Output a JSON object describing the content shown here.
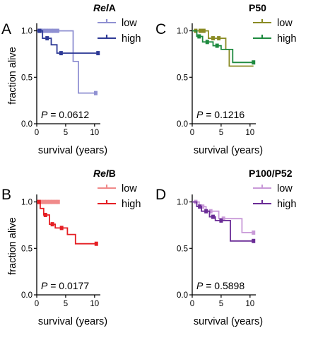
{
  "chart_data": [
    {
      "type": "line",
      "panel": "A",
      "title_italic": "Rel",
      "title_rest": "A",
      "xlabel": "survival (years)",
      "ylabel": "fraction alive",
      "x_ticks": [
        "0",
        "5",
        "10"
      ],
      "y_ticks": [
        "0.0",
        "0.5",
        "1.0"
      ],
      "xlim": [
        0,
        11
      ],
      "ylim": [
        0,
        1.05
      ],
      "grid": false,
      "legend_position": "top-right",
      "p_label": "P",
      "p_value": "= 0.0612",
      "series": [
        {
          "name": "low",
          "color": "#8f90d2",
          "steps": [
            [
              0,
              1.0
            ],
            [
              6.3,
              1.0
            ],
            [
              6.3,
              0.67
            ],
            [
              7.2,
              0.67
            ],
            [
              7.2,
              0.33
            ],
            [
              10.2,
              0.33
            ]
          ],
          "censored": [
            [
              0.4,
              1.0
            ],
            [
              0.8,
              1.0
            ],
            [
              1.2,
              1.0
            ],
            [
              1.6,
              1.0
            ],
            [
              2.0,
              1.0
            ],
            [
              2.5,
              1.0
            ],
            [
              3.0,
              1.0
            ],
            [
              3.6,
              1.0
            ],
            [
              10.2,
              0.33
            ]
          ]
        },
        {
          "name": "high",
          "color": "#2e3a96",
          "steps": [
            [
              0,
              1.0
            ],
            [
              1.0,
              1.0
            ],
            [
              1.0,
              0.92
            ],
            [
              2.5,
              0.92
            ],
            [
              2.5,
              0.85
            ],
            [
              3.5,
              0.85
            ],
            [
              3.5,
              0.76
            ],
            [
              10.6,
              0.76
            ]
          ],
          "censored": [
            [
              0.5,
              1.0
            ],
            [
              1.8,
              0.92
            ],
            [
              4.2,
              0.76
            ],
            [
              10.6,
              0.76
            ]
          ]
        }
      ]
    },
    {
      "type": "line",
      "panel": "B",
      "title_italic": "Rel",
      "title_rest": "B",
      "xlabel": "survival (years)",
      "ylabel": "fraction alive",
      "x_ticks": [
        "0",
        "5",
        "10"
      ],
      "y_ticks": [
        "0.0",
        "0.5",
        "1.0"
      ],
      "xlim": [
        0,
        11
      ],
      "ylim": [
        0,
        1.05
      ],
      "grid": false,
      "legend_position": "top-right",
      "p_label": "P",
      "p_value": "= 0.0177",
      "series": [
        {
          "name": "low",
          "color": "#f08a8a",
          "steps": [
            [
              0,
              1.0
            ],
            [
              3.5,
              1.0
            ]
          ],
          "censored": [
            [
              0.8,
              1.0
            ],
            [
              1.3,
              1.0
            ],
            [
              1.8,
              1.0
            ],
            [
              2.3,
              1.0
            ],
            [
              2.8,
              1.0
            ],
            [
              3.3,
              1.0
            ],
            [
              3.7,
              1.0
            ]
          ]
        },
        {
          "name": "high",
          "color": "#e51f24",
          "steps": [
            [
              0,
              1.0
            ],
            [
              0.6,
              1.0
            ],
            [
              0.6,
              0.93
            ],
            [
              1.2,
              0.93
            ],
            [
              1.2,
              0.86
            ],
            [
              2.2,
              0.86
            ],
            [
              2.2,
              0.76
            ],
            [
              3.2,
              0.76
            ],
            [
              3.2,
              0.72
            ],
            [
              5.3,
              0.72
            ],
            [
              5.3,
              0.65
            ],
            [
              6.7,
              0.65
            ],
            [
              6.7,
              0.55
            ],
            [
              10.3,
              0.55
            ]
          ],
          "censored": [
            [
              0.4,
              1.0
            ],
            [
              1.5,
              0.86
            ],
            [
              2.7,
              0.76
            ],
            [
              4.3,
              0.72
            ],
            [
              10.3,
              0.55
            ]
          ]
        }
      ]
    },
    {
      "type": "line",
      "panel": "C",
      "title_italic": "",
      "title_rest": "P50",
      "xlabel": "survival (years)",
      "ylabel": "",
      "x_ticks": [
        "0",
        "5",
        "10"
      ],
      "y_ticks": [
        "0.0",
        "0.5",
        "1.0"
      ],
      "xlim": [
        0,
        11
      ],
      "ylim": [
        0,
        1.05
      ],
      "grid": false,
      "legend_position": "top-right",
      "p_label": "P",
      "p_value": "= 0.1216",
      "series": [
        {
          "name": "low",
          "color": "#8a8b24",
          "steps": [
            [
              0,
              1.0
            ],
            [
              2.8,
              1.0
            ],
            [
              2.8,
              0.92
            ],
            [
              5.8,
              0.92
            ],
            [
              5.8,
              0.8
            ],
            [
              6.4,
              0.8
            ],
            [
              6.4,
              0.62
            ],
            [
              10.6,
              0.62
            ]
          ],
          "censored": [
            [
              0.6,
              1.0
            ],
            [
              1.4,
              1.0
            ],
            [
              2.0,
              1.0
            ],
            [
              3.6,
              0.92
            ],
            [
              4.6,
              0.92
            ]
          ]
        },
        {
          "name": "high",
          "color": "#1e8a3f",
          "steps": [
            [
              0,
              1.0
            ],
            [
              0.8,
              1.0
            ],
            [
              0.8,
              0.94
            ],
            [
              1.8,
              0.94
            ],
            [
              1.8,
              0.88
            ],
            [
              3.6,
              0.88
            ],
            [
              3.6,
              0.84
            ],
            [
              5.0,
              0.84
            ],
            [
              5.0,
              0.8
            ],
            [
              7.0,
              0.8
            ],
            [
              7.0,
              0.66
            ],
            [
              10.6,
              0.66
            ]
          ],
          "censored": [
            [
              1.2,
              0.94
            ],
            [
              2.6,
              0.88
            ],
            [
              4.3,
              0.84
            ],
            [
              10.6,
              0.66
            ]
          ]
        }
      ]
    },
    {
      "type": "line",
      "panel": "D",
      "title_italic": "",
      "title_rest": "P100/P52",
      "xlabel": "survival (years)",
      "ylabel": "",
      "x_ticks": [
        "0",
        "5",
        "10"
      ],
      "y_ticks": [
        "0.0",
        "0.5",
        "1.0"
      ],
      "xlim": [
        0,
        11
      ],
      "ylim": [
        0,
        1.05
      ],
      "grid": false,
      "legend_position": "top-right",
      "p_label": "P",
      "p_value": "= 0.5898",
      "series": [
        {
          "name": "low",
          "color": "#c99ad8",
          "steps": [
            [
              0,
              1.0
            ],
            [
              1.2,
              1.0
            ],
            [
              1.2,
              0.95
            ],
            [
              2.4,
              0.95
            ],
            [
              2.4,
              0.9
            ],
            [
              4.6,
              0.9
            ],
            [
              4.6,
              0.82
            ],
            [
              8.6,
              0.82
            ],
            [
              8.6,
              0.67
            ],
            [
              10.6,
              0.67
            ]
          ],
          "censored": [
            [
              0.6,
              1.0
            ],
            [
              1.8,
              0.95
            ],
            [
              3.2,
              0.9
            ],
            [
              5.4,
              0.82
            ],
            [
              10.6,
              0.67
            ]
          ]
        },
        {
          "name": "high",
          "color": "#6a2c96",
          "steps": [
            [
              0,
              1.0
            ],
            [
              0.8,
              1.0
            ],
            [
              0.8,
              0.95
            ],
            [
              1.6,
              0.95
            ],
            [
              1.6,
              0.9
            ],
            [
              3.0,
              0.9
            ],
            [
              3.0,
              0.84
            ],
            [
              4.0,
              0.84
            ],
            [
              4.0,
              0.8
            ],
            [
              6.6,
              0.8
            ],
            [
              6.6,
              0.58
            ],
            [
              10.6,
              0.58
            ]
          ],
          "censored": [
            [
              1.3,
              0.95
            ],
            [
              2.4,
              0.9
            ],
            [
              3.6,
              0.84
            ],
            [
              5.0,
              0.8
            ],
            [
              10.6,
              0.58
            ]
          ]
        }
      ]
    }
  ]
}
